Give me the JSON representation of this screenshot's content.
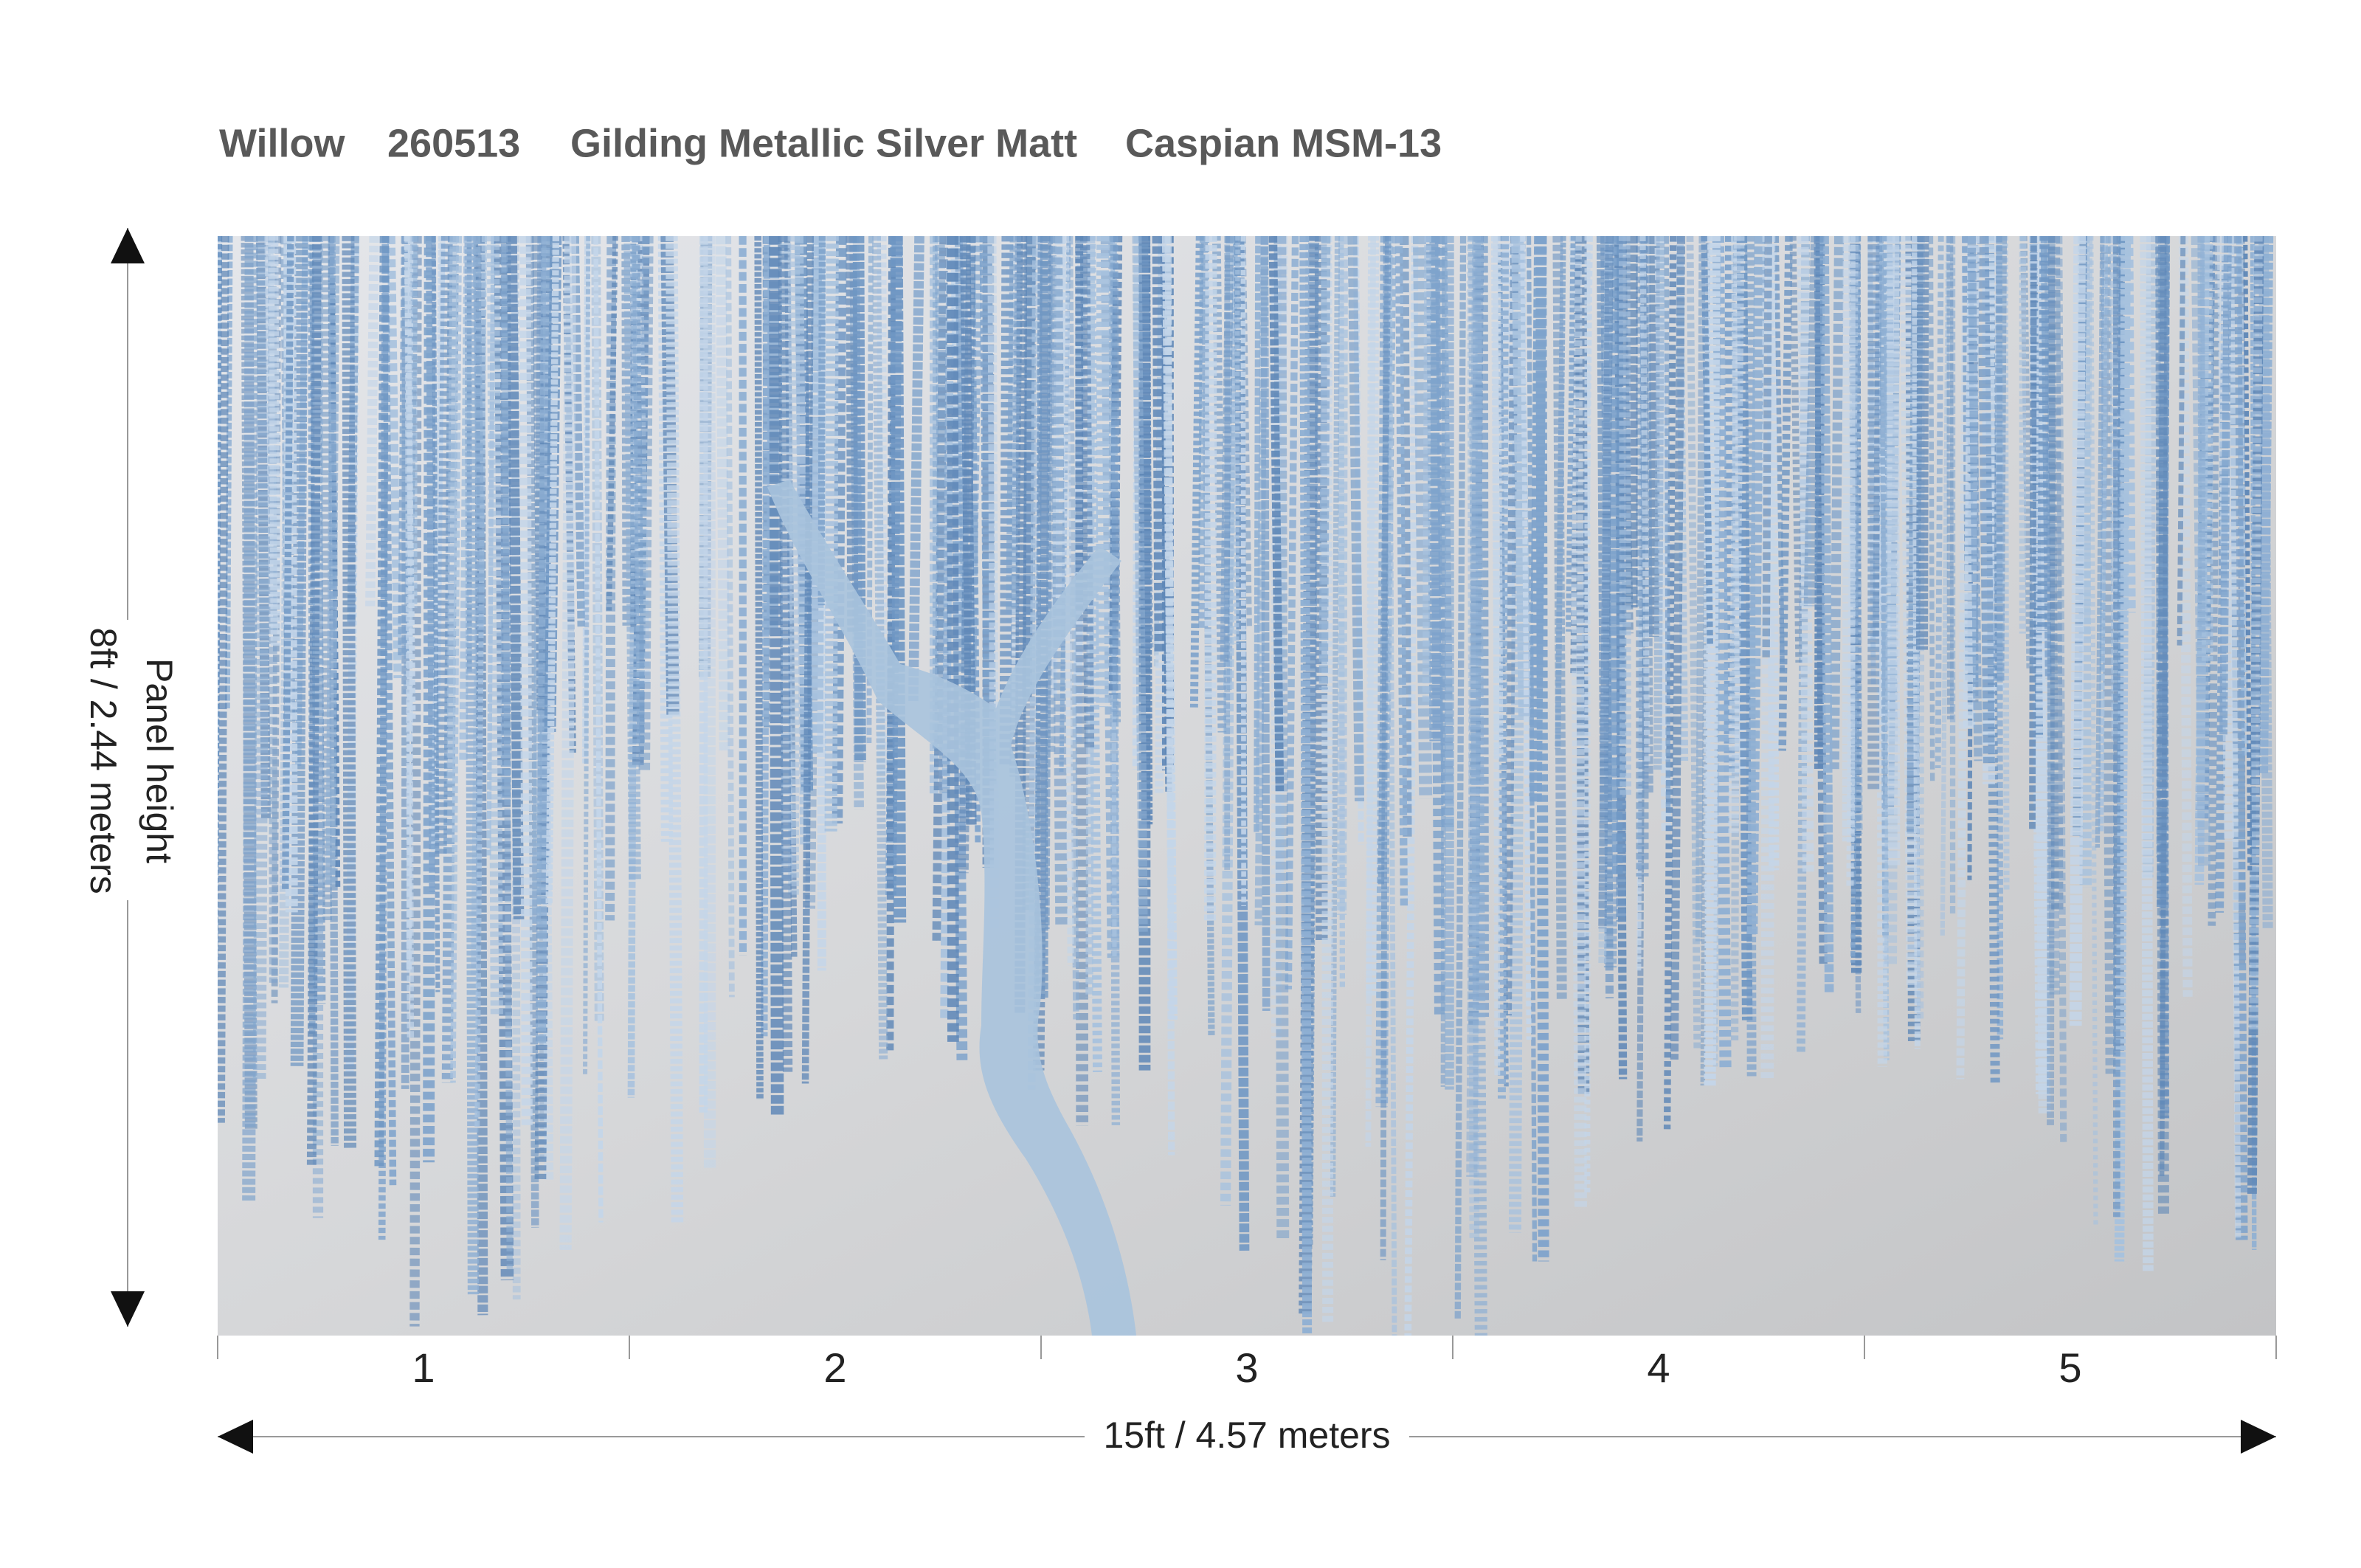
{
  "header": {
    "title_parts": [
      "Willow",
      "260513",
      "Gilding Metallic Silver Matt",
      "Caspian MSM-13"
    ]
  },
  "panel": {
    "labels": [
      "1",
      "2",
      "3",
      "4",
      "5"
    ],
    "width_label": "15ft  / 4.57 meters",
    "height_label": "Panel height",
    "height_value": "8ft / 2.44 meters"
  }
}
